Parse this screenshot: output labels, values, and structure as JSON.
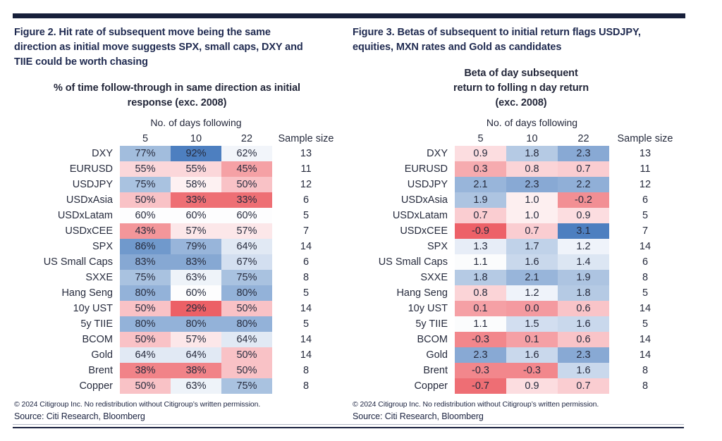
{
  "accent_navy": "#171f3a",
  "figures": [
    {
      "title_lines": [
        "Figure 2. Hit rate of subsequent move being the same",
        "direction as initial move suggests SPX, small caps, DXY and",
        "TIIE could be worth chasing"
      ],
      "subtitle_lines": [
        "% of time follow-through in same direction as initial",
        "response (exc. 2008)"
      ],
      "days_label": "No. of days following",
      "col_headers": [
        "5",
        "10",
        "22"
      ],
      "sample_header": "Sample size",
      "rows": [
        {
          "label": "DXY",
          "cells": [
            {
              "v": "77%",
              "c": "#a2bddd"
            },
            {
              "v": "92%",
              "c": "#4d7fc0"
            },
            {
              "v": "62%",
              "c": "#f2f5fa"
            }
          ],
          "sample": "13"
        },
        {
          "label": "EURUSD",
          "cells": [
            {
              "v": "55%",
              "c": "#fbd7da"
            },
            {
              "v": "55%",
              "c": "#fbd7da"
            },
            {
              "v": "45%",
              "c": "#f5a1a5"
            }
          ],
          "sample": "11"
        },
        {
          "label": "USDJPY",
          "cells": [
            {
              "v": "75%",
              "c": "#a9c2e0"
            },
            {
              "v": "58%",
              "c": "#fdf1f2"
            },
            {
              "v": "50%",
              "c": "#f9c2c6"
            }
          ],
          "sample": "12"
        },
        {
          "label": "USDxAsia",
          "cells": [
            {
              "v": "50%",
              "c": "#f9c2c6"
            },
            {
              "v": "33%",
              "c": "#ee6f74"
            },
            {
              "v": "33%",
              "c": "#ee6f74"
            }
          ],
          "sample": "6"
        },
        {
          "label": "USDxLatam",
          "cells": [
            {
              "v": "60%",
              "c": "#fdfdfe"
            },
            {
              "v": "60%",
              "c": "#fdfdfe"
            },
            {
              "v": "60%",
              "c": "#fdfdfe"
            }
          ],
          "sample": "5"
        },
        {
          "label": "USDxCEE",
          "cells": [
            {
              "v": "43%",
              "c": "#f3969a"
            },
            {
              "v": "57%",
              "c": "#fce7e9"
            },
            {
              "v": "57%",
              "c": "#fce7e9"
            }
          ],
          "sample": "7"
        },
        {
          "label": "SPX",
          "cells": [
            {
              "v": "86%",
              "c": "#7099cc"
            },
            {
              "v": "79%",
              "c": "#98b5da"
            },
            {
              "v": "64%",
              "c": "#e1e9f4"
            }
          ],
          "sample": "14"
        },
        {
          "label": "US Small Caps",
          "cells": [
            {
              "v": "83%",
              "c": "#86a8d3"
            },
            {
              "v": "83%",
              "c": "#86a8d3"
            },
            {
              "v": "67%",
              "c": "#d3dff0"
            }
          ],
          "sample": "6"
        },
        {
          "label": "SXXE",
          "cells": [
            {
              "v": "75%",
              "c": "#a9c2e0"
            },
            {
              "v": "63%",
              "c": "#eef3f9"
            },
            {
              "v": "75%",
              "c": "#a9c2e0"
            }
          ],
          "sample": "8"
        },
        {
          "label": "Hang Seng",
          "cells": [
            {
              "v": "80%",
              "c": "#93b2d9"
            },
            {
              "v": "60%",
              "c": "#fdfdfe"
            },
            {
              "v": "80%",
              "c": "#93b2d9"
            }
          ],
          "sample": "5"
        },
        {
          "label": "10y UST",
          "cells": [
            {
              "v": "50%",
              "c": "#f9c2c6"
            },
            {
              "v": "29%",
              "c": "#ec6066"
            },
            {
              "v": "50%",
              "c": "#f9c2c6"
            }
          ],
          "sample": "14"
        },
        {
          "label": "5y TIIE",
          "cells": [
            {
              "v": "80%",
              "c": "#93b2d9"
            },
            {
              "v": "80%",
              "c": "#93b2d9"
            },
            {
              "v": "80%",
              "c": "#93b2d9"
            }
          ],
          "sample": "5"
        },
        {
          "label": "BCOM",
          "cells": [
            {
              "v": "50%",
              "c": "#f9c2c6"
            },
            {
              "v": "57%",
              "c": "#fce7e9"
            },
            {
              "v": "64%",
              "c": "#e1e9f4"
            }
          ],
          "sample": "14"
        },
        {
          "label": "Gold",
          "cells": [
            {
              "v": "64%",
              "c": "#e1e9f4"
            },
            {
              "v": "64%",
              "c": "#e1e9f4"
            },
            {
              "v": "50%",
              "c": "#f9c2c6"
            }
          ],
          "sample": "14"
        },
        {
          "label": "Brent",
          "cells": [
            {
              "v": "38%",
              "c": "#f18388"
            },
            {
              "v": "38%",
              "c": "#f18388"
            },
            {
              "v": "50%",
              "c": "#f9c2c6"
            }
          ],
          "sample": "8"
        },
        {
          "label": "Copper",
          "cells": [
            {
              "v": "50%",
              "c": "#f9c2c6"
            },
            {
              "v": "63%",
              "c": "#eef3f9"
            },
            {
              "v": "75%",
              "c": "#a9c2e0"
            }
          ],
          "sample": "8"
        }
      ],
      "copyright": "© 2024 Citigroup Inc. No redistribution without Citigroup’s written permission.",
      "source": "Source: Citi Research, Bloomberg"
    },
    {
      "title_lines": [
        "Figure 3. Betas of subsequent to initial return flags USDJPY,",
        "equities, MXN rates and Gold as candidates"
      ],
      "subtitle_lines": [
        "Beta of day subsequent",
        "return to folling n day return",
        "(exc. 2008)"
      ],
      "days_label": "No. of days following",
      "col_headers": [
        "5",
        "10",
        "22"
      ],
      "sample_header": "Sample size",
      "rows": [
        {
          "label": "DXY",
          "cells": [
            {
              "v": "0.9",
              "c": "#fcdde0"
            },
            {
              "v": "1.8",
              "c": "#b5cae4"
            },
            {
              "v": "2.3",
              "c": "#88a9d4"
            }
          ],
          "sample": "13"
        },
        {
          "label": "EURUSD",
          "cells": [
            {
              "v": "0.3",
              "c": "#f6abaf"
            },
            {
              "v": "0.8",
              "c": "#fbd4d7"
            },
            {
              "v": "0.7",
              "c": "#facdd1"
            }
          ],
          "sample": "11"
        },
        {
          "label": "USDJPY",
          "cells": [
            {
              "v": "2.1",
              "c": "#98b5da"
            },
            {
              "v": "2.3",
              "c": "#88a9d4"
            },
            {
              "v": "2.2",
              "c": "#90afd7"
            }
          ],
          "sample": "12"
        },
        {
          "label": "USDxAsia",
          "cells": [
            {
              "v": "1.9",
              "c": "#adc4e1"
            },
            {
              "v": "1.0",
              "c": "#fdeff0"
            },
            {
              "v": "-0.2",
              "c": "#f28f94"
            }
          ],
          "sample": "6"
        },
        {
          "label": "USDxLatam",
          "cells": [
            {
              "v": "0.7",
              "c": "#facdd1"
            },
            {
              "v": "1.0",
              "c": "#fdeff0"
            },
            {
              "v": "0.9",
              "c": "#fcdde0"
            }
          ],
          "sample": "5"
        },
        {
          "label": "USDxCEE",
          "cells": [
            {
              "v": "-0.9",
              "c": "#ed6168"
            },
            {
              "v": "0.7",
              "c": "#facdd1"
            },
            {
              "v": "3.1",
              "c": "#4d7fc0"
            }
          ],
          "sample": "7"
        },
        {
          "label": "SPX",
          "cells": [
            {
              "v": "1.3",
              "c": "#e7edf7"
            },
            {
              "v": "1.7",
              "c": "#c0d2e9"
            },
            {
              "v": "1.2",
              "c": "#eff3fa"
            }
          ],
          "sample": "14"
        },
        {
          "label": "US Small Caps",
          "cells": [
            {
              "v": "1.1",
              "c": "#fbfcfd"
            },
            {
              "v": "1.6",
              "c": "#c9d8ec"
            },
            {
              "v": "1.4",
              "c": "#dce6f3"
            }
          ],
          "sample": "6"
        },
        {
          "label": "SXXE",
          "cells": [
            {
              "v": "1.8",
              "c": "#b5cae4"
            },
            {
              "v": "2.1",
              "c": "#98b5da"
            },
            {
              "v": "1.9",
              "c": "#adc4e1"
            }
          ],
          "sample": "8"
        },
        {
          "label": "Hang Seng",
          "cells": [
            {
              "v": "0.8",
              "c": "#fbd4d7"
            },
            {
              "v": "1.2",
              "c": "#eff3fa"
            },
            {
              "v": "1.8",
              "c": "#b5cae4"
            }
          ],
          "sample": "5"
        },
        {
          "label": "10y UST",
          "cells": [
            {
              "v": "0.1",
              "c": "#f5a0a5"
            },
            {
              "v": "0.0",
              "c": "#f49aa0"
            },
            {
              "v": "0.6",
              "c": "#f9c4c8"
            }
          ],
          "sample": "14"
        },
        {
          "label": "5y TIIE",
          "cells": [
            {
              "v": "1.1",
              "c": "#fbfcfd"
            },
            {
              "v": "1.5",
              "c": "#d2def0"
            },
            {
              "v": "1.6",
              "c": "#c9d8ec"
            }
          ],
          "sample": "5"
        },
        {
          "label": "BCOM",
          "cells": [
            {
              "v": "-0.3",
              "c": "#f2878c"
            },
            {
              "v": "0.1",
              "c": "#f5a0a5"
            },
            {
              "v": "0.6",
              "c": "#f9c4c8"
            }
          ],
          "sample": "14"
        },
        {
          "label": "Gold",
          "cells": [
            {
              "v": "2.3",
              "c": "#88a9d4"
            },
            {
              "v": "1.6",
              "c": "#c9d8ec"
            },
            {
              "v": "2.3",
              "c": "#88a9d4"
            }
          ],
          "sample": "14"
        },
        {
          "label": "Brent",
          "cells": [
            {
              "v": "-0.3",
              "c": "#f2878c"
            },
            {
              "v": "-0.3",
              "c": "#f2878c"
            },
            {
              "v": "1.6",
              "c": "#c9d8ec"
            }
          ],
          "sample": "8"
        },
        {
          "label": "Copper",
          "cells": [
            {
              "v": "-0.7",
              "c": "#ee6e74"
            },
            {
              "v": "0.9",
              "c": "#fcdde0"
            },
            {
              "v": "0.7",
              "c": "#facdd1"
            }
          ],
          "sample": "8"
        }
      ],
      "copyright": "© 2024 Citigroup Inc. No redistribution without Citigroup’s written permission.",
      "source": "Source: Citi Research, Bloomberg"
    }
  ]
}
